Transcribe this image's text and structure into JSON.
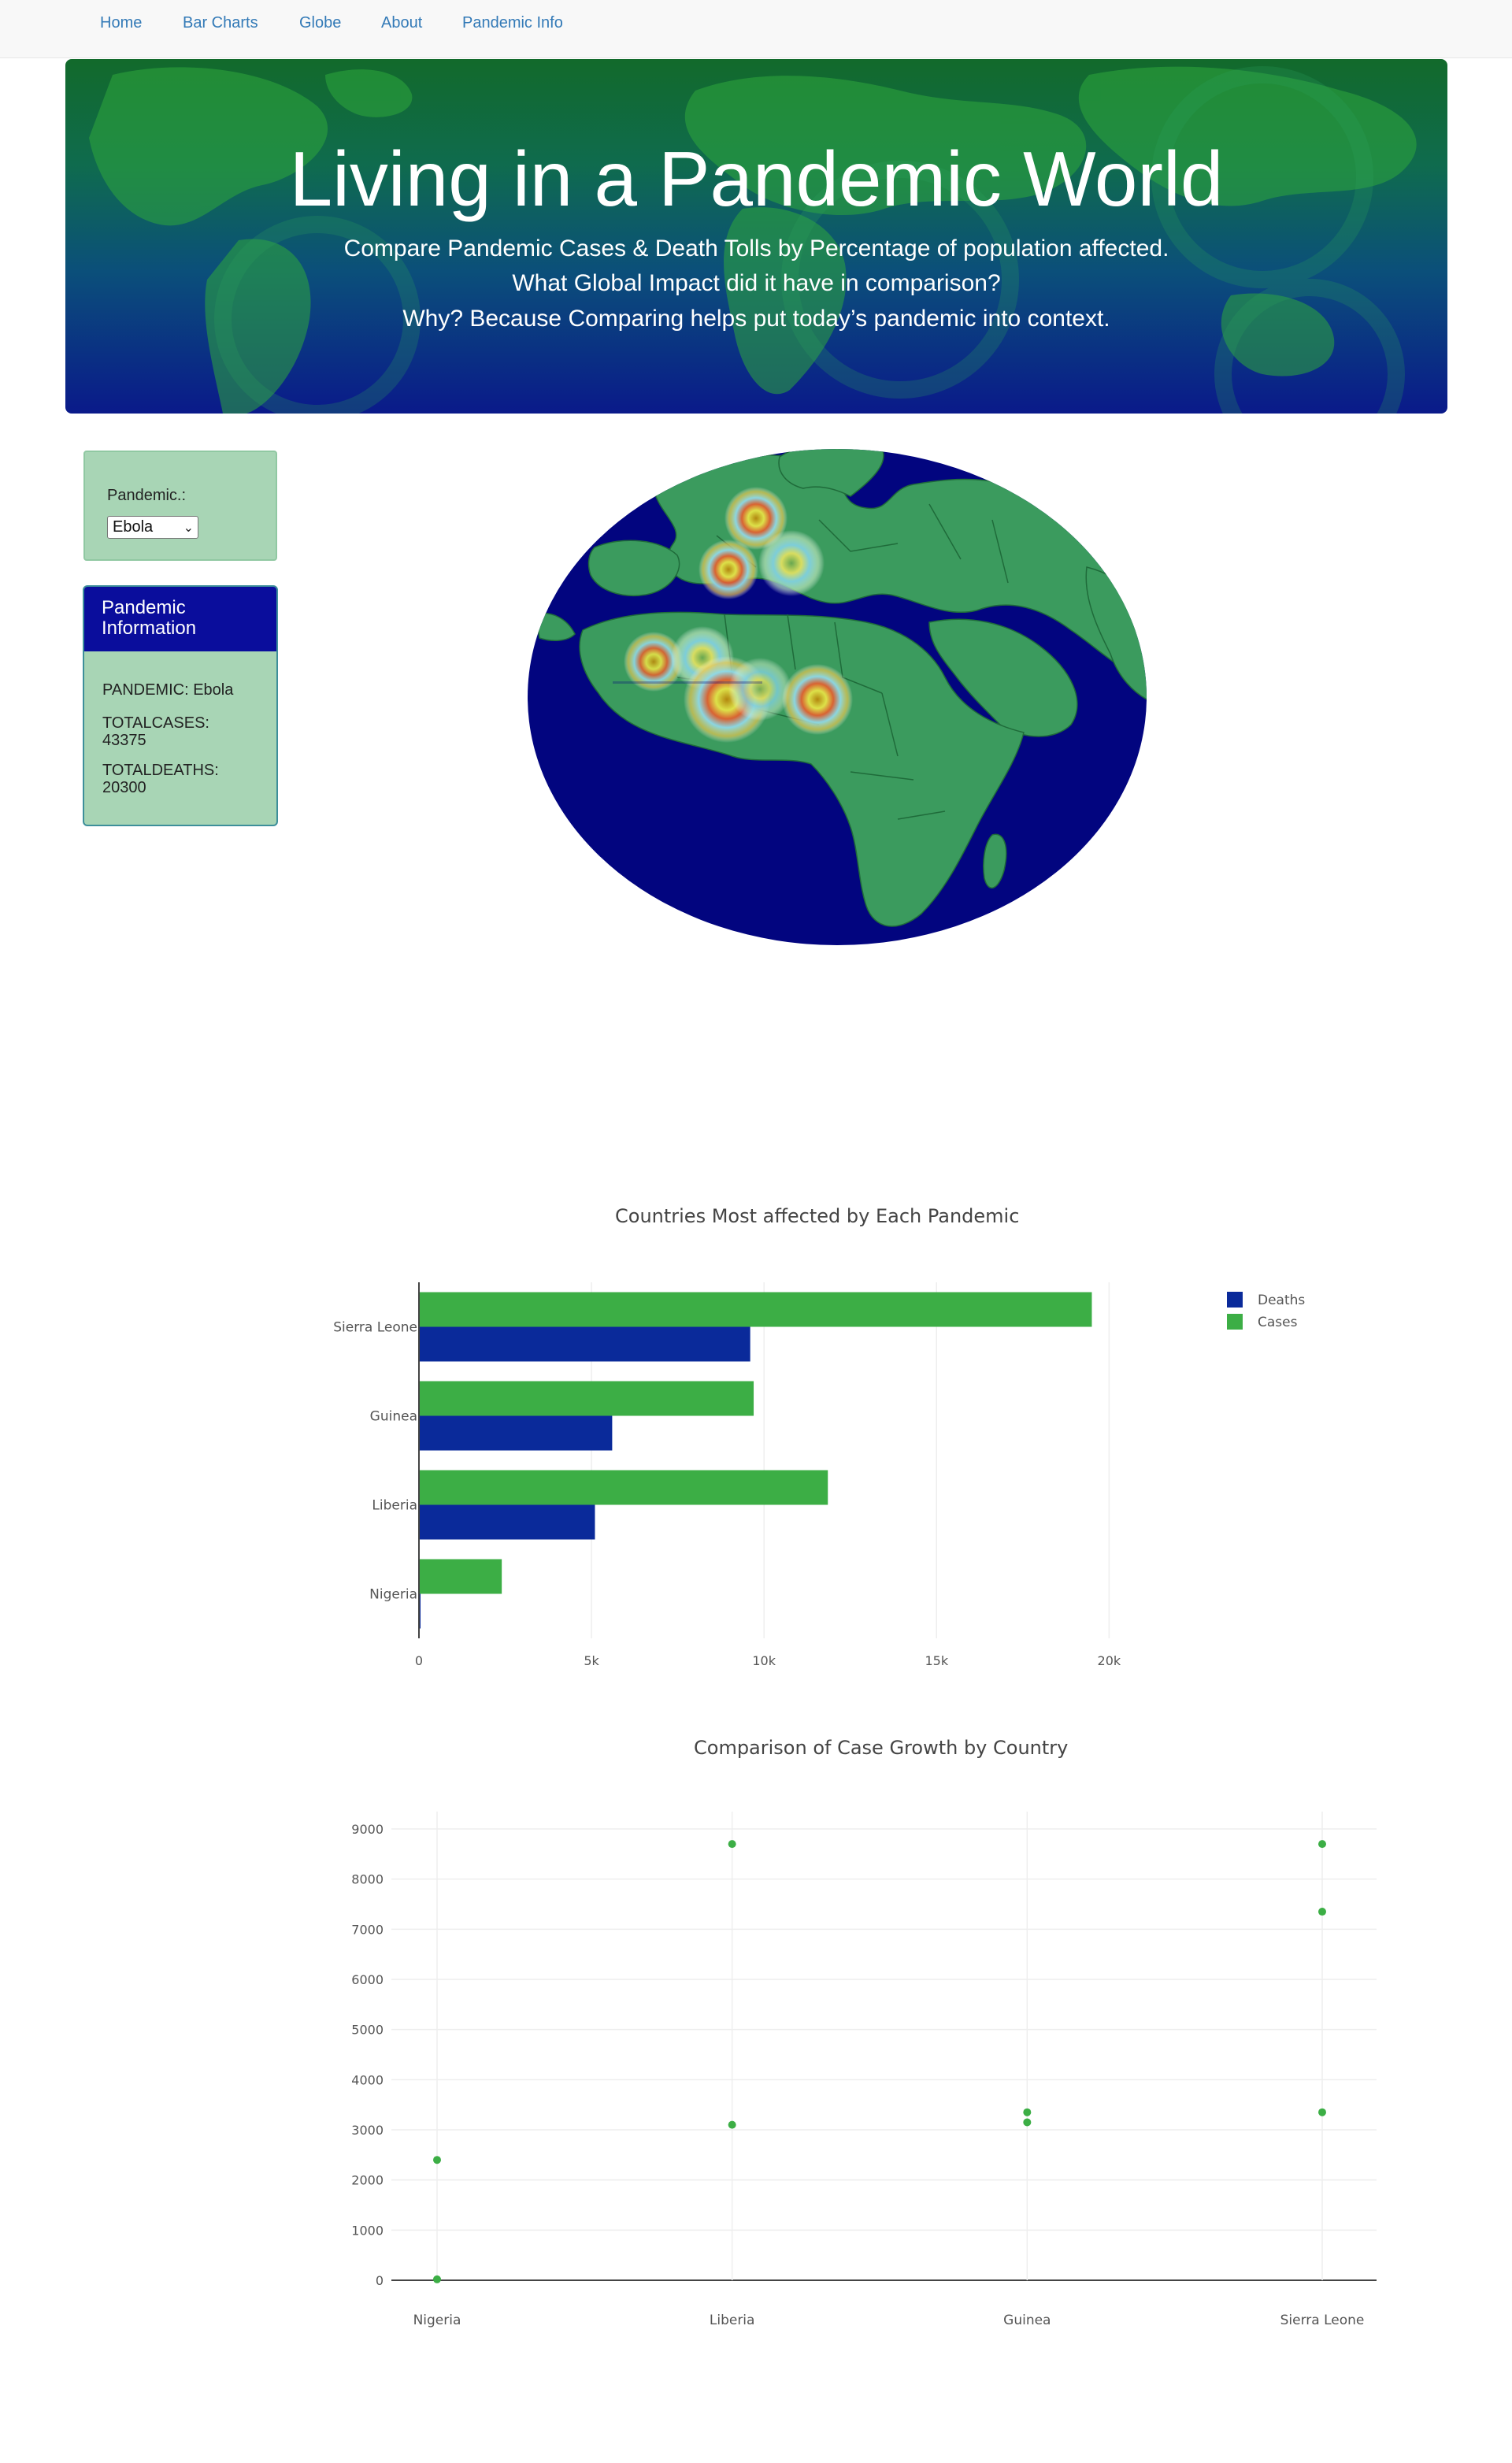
{
  "nav": {
    "items": [
      "Home",
      "Bar Charts",
      "Globe",
      "About",
      "Pandemic Info"
    ]
  },
  "jumbotron": {
    "title": "Living in a Pandemic World",
    "line1": "Compare Pandemic Cases & Death Tolls by Percentage of population affected.",
    "line2": "What Global Impact did it have in comparison?",
    "line3": "Why? Because Comparing helps put today’s pandemic into context."
  },
  "selector": {
    "label": "Pandemic.:",
    "selected": "Ebola"
  },
  "info": {
    "header": "Pandemic Information",
    "pandemic": "PANDEMIC: Ebola",
    "cases_label": "TOTALCASES:",
    "cases_value": "43375",
    "deaths_label": "TOTALDEATHS:",
    "deaths_value": "20300"
  },
  "colors": {
    "deaths": "#0a2a9a",
    "cases": "#3cae45",
    "ocean": "#02057f",
    "land": "#3b9b5e"
  },
  "chart_data": [
    {
      "type": "bar",
      "orientation": "horizontal",
      "title": "Countries Most affected by Each Pandemic",
      "categories": [
        "Sierra Leone",
        "Guinea",
        "Liberia",
        "Nigeria"
      ],
      "series": [
        {
          "name": "Deaths",
          "values": [
            9600,
            5600,
            5100,
            20
          ]
        },
        {
          "name": "Cases",
          "values": [
            19500,
            9700,
            11850,
            2400
          ]
        }
      ],
      "xlim": [
        0,
        22000
      ],
      "xticks": [
        "0",
        "5k",
        "10k",
        "15k",
        "20k"
      ],
      "xtick_values": [
        0,
        5000,
        10000,
        15000,
        20000
      ],
      "legend": "top-right",
      "grid": true
    },
    {
      "type": "scatter",
      "title": "Comparison of Case Growth by Country",
      "categories": [
        "Nigeria",
        "Liberia",
        "Guinea",
        "Sierra Leone"
      ],
      "points": [
        {
          "x": "Nigeria",
          "y": 2400
        },
        {
          "x": "Nigeria",
          "y": 19
        },
        {
          "x": "Liberia",
          "y": 8700
        },
        {
          "x": "Liberia",
          "y": 3100
        },
        {
          "x": "Guinea",
          "y": 3350
        },
        {
          "x": "Guinea",
          "y": 3150
        },
        {
          "x": "Sierra Leone",
          "y": 8700
        },
        {
          "x": "Sierra Leone",
          "y": 7350
        },
        {
          "x": "Sierra Leone",
          "y": 3350
        }
      ],
      "ylim": [
        0,
        9000
      ],
      "yticks": [
        "0",
        "1000",
        "2000",
        "3000",
        "4000",
        "5000",
        "6000",
        "7000",
        "8000",
        "9000"
      ],
      "ytick_values": [
        0,
        1000,
        2000,
        3000,
        4000,
        5000,
        6000,
        7000,
        8000,
        9000
      ],
      "grid": true
    }
  ]
}
